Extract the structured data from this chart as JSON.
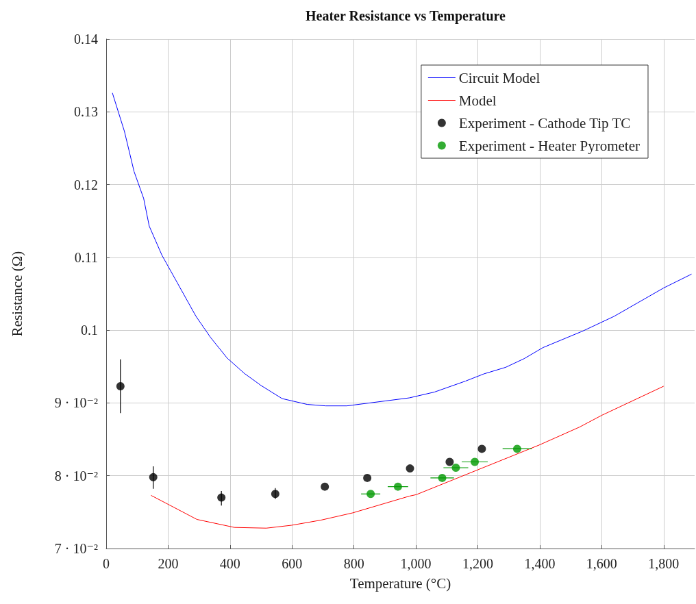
{
  "chart_data": {
    "type": "line",
    "title": "Heater Resistance vs Temperature",
    "xlabel": "Temperature (°C)",
    "ylabel": "Resistance (Ω)",
    "xlim": [
      0,
      1900
    ],
    "xticks": [
      0,
      200,
      400,
      600,
      800,
      {
        "value": 1000,
        "label": "1,000"
      },
      {
        "value": 1200,
        "label": "1,200"
      },
      {
        "value": 1400,
        "label": "1,400"
      },
      {
        "value": 1600,
        "label": "1,600"
      },
      {
        "value": 1800,
        "label": "1,800"
      }
    ],
    "ylim": [
      0.07,
      0.14
    ],
    "yticks": [
      {
        "value": 0.07,
        "label": "7 · 10⁻²"
      },
      {
        "value": 0.08,
        "label": "8 · 10⁻²"
      },
      {
        "value": 0.09,
        "label": "9 · 10⁻²"
      },
      0.1,
      0.11,
      0.12,
      0.13,
      0.14
    ],
    "grid": true,
    "legend": "top right",
    "series": [
      {
        "name": "Circuit Model",
        "color": "#0000ff",
        "marker": "none",
        "x": [
          20,
          59,
          90,
          121,
          139,
          180,
          290,
          337,
          390,
          445,
          500,
          568,
          649,
          709,
          777,
          979,
          1060,
          1160,
          1220,
          1290,
          1350,
          1410,
          1540,
          1640,
          1800,
          1890
        ],
        "values": [
          0.1326,
          0.1273,
          0.1218,
          0.1181,
          0.1143,
          0.1103,
          0.1019,
          0.099,
          0.0962,
          0.0941,
          0.0924,
          0.0906,
          0.0898,
          0.0896,
          0.0896,
          0.0907,
          0.0915,
          0.093,
          0.094,
          0.0949,
          0.0961,
          0.0976,
          0.0999,
          0.1019,
          0.1058,
          0.1077
        ]
      },
      {
        "name": "Model",
        "color": "#ff0000",
        "marker": "none",
        "x": [
          145,
          293,
          414,
          517,
          599,
          693,
          796,
          979,
          1001,
          1199,
          1397,
          1529,
          1600,
          1800
        ],
        "values": [
          0.0773,
          0.074,
          0.0729,
          0.0728,
          0.0732,
          0.0739,
          0.0749,
          0.0772,
          0.0774,
          0.0808,
          0.0842,
          0.0867,
          0.0883,
          0.0923
        ]
      },
      {
        "name": "Experiment - Cathode Tip TC",
        "type": "scatter",
        "color": "#000000",
        "marker": "circle",
        "x": [
          46,
          152,
          372,
          546,
          706,
          843,
          981,
          1109,
          1213
        ],
        "values": [
          0.0923,
          0.0798,
          0.077,
          0.0775,
          0.0785,
          0.0797,
          0.081,
          0.0819,
          0.0837
        ],
        "errors": [
          [
            0.0886,
            0.096
          ],
          [
            0.0782,
            0.0813
          ],
          [
            0.0759,
            0.0779
          ],
          [
            0.0768,
            0.0783
          ],
          null,
          null,
          null,
          null,
          null
        ]
      },
      {
        "name": "Experiment - Heater Pyrometer",
        "type": "scatter",
        "color": "#009900",
        "marker": "circle",
        "x": [
          854,
          942,
          1085,
          1129,
          1190,
          1327
        ],
        "values": [
          0.0775,
          0.0785,
          0.0797,
          0.0811,
          0.0819,
          0.0837
        ],
        "xerrors": [
          31,
          33,
          38,
          40,
          42,
          47
        ]
      }
    ]
  }
}
